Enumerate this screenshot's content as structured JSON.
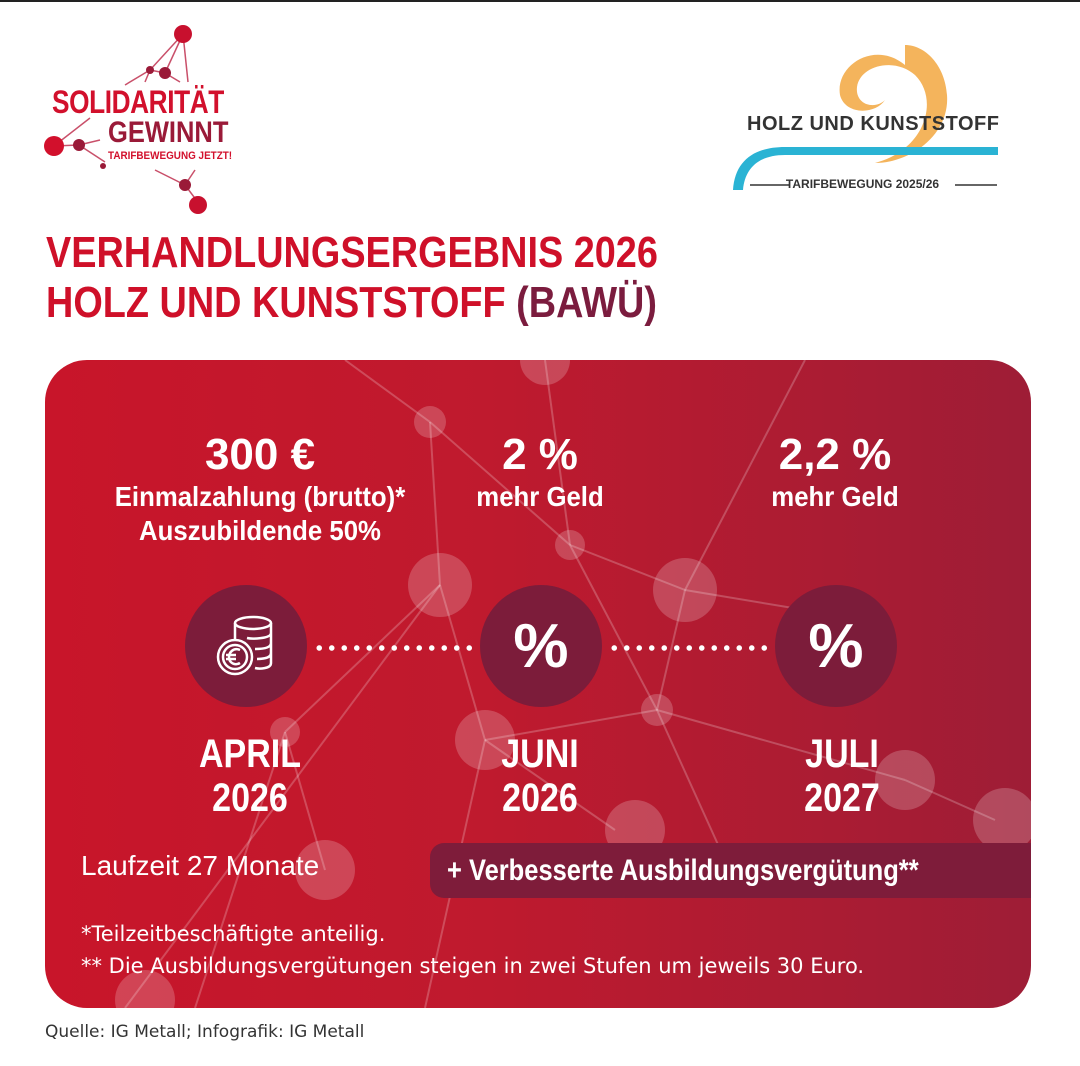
{
  "logos": {
    "left": {
      "line1": "SOLIDARITÄT",
      "line2": "GEWINNT",
      "line3": "TARIFBEWEGUNG JETZT!"
    },
    "right": {
      "name": "HOLZ UND KUNSTSTOFF",
      "subtitle": "TARIFBEWEGUNG 2025/26"
    }
  },
  "title": {
    "line1": "VERHANDLUNGSERGEBNIS 2026",
    "line2_a": "HOLZ UND KUNSTSTOFF ",
    "line2_b": "(BAWÜ)"
  },
  "colors": {
    "red": "#cf1029",
    "maroon": "#7b1c3e",
    "card_left": "#c8152a",
    "card_right": "#9e1d36",
    "circle": "#7c1c3a",
    "logo_orange": "#f4b45c",
    "logo_blue": "#2ab3d4"
  },
  "steps": [
    {
      "value": "300 €",
      "desc1": "Einmalzahlung (brutto)*",
      "desc2": "Auszubildende 50%",
      "icon": "euro-coins-icon",
      "icon_text": "",
      "month": "APRIL",
      "year": "2026"
    },
    {
      "value": "2 %",
      "desc1": "mehr Geld",
      "desc2": "",
      "icon": "percent-icon",
      "icon_text": "%",
      "month": "JUNI",
      "year": "2026"
    },
    {
      "value": "2,2 %",
      "desc1": "mehr Geld",
      "desc2": "",
      "icon": "percent-icon",
      "icon_text": "%",
      "month": "JULI",
      "year": "2027"
    }
  ],
  "laufzeit": "Laufzeit 27 Monate",
  "banner": "+  Verbesserte Ausbildungsvergütung**",
  "footnotes": [
    "*Teilzeitbeschäftigte anteilig.",
    "** Die Ausbildungsvergütungen steigen in zwei Stufen um jeweils 30 Euro."
  ],
  "source": "Quelle: IG Metall; Infografik: IG Metall"
}
